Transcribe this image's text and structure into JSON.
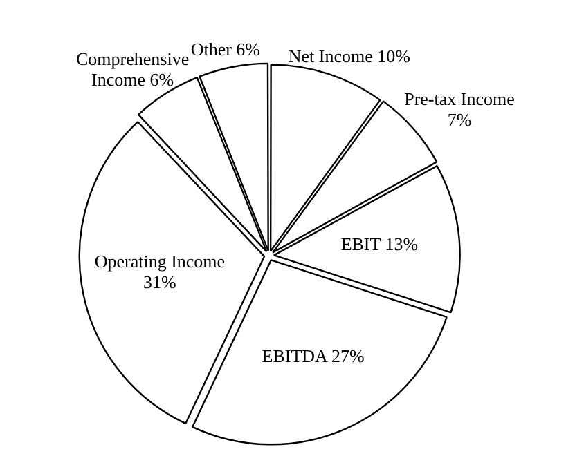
{
  "chart_data": {
    "type": "pie",
    "categories": [
      "Net Income",
      "Pre-tax Income",
      "EBIT",
      "EBITDA",
      "Operating Income",
      "Comprehensive Income",
      "Other"
    ],
    "values": [
      10,
      7,
      13,
      27,
      31,
      6,
      6
    ],
    "value_labels": [
      "10%",
      "7%",
      "13%",
      "27%",
      "31%",
      "6%",
      "6%"
    ],
    "colors": [
      "#ffffff",
      "#ffffff",
      "#ffffff",
      "#ffffff",
      "#ffffff",
      "#ffffff",
      "#ffffff"
    ],
    "legend": false
  }
}
